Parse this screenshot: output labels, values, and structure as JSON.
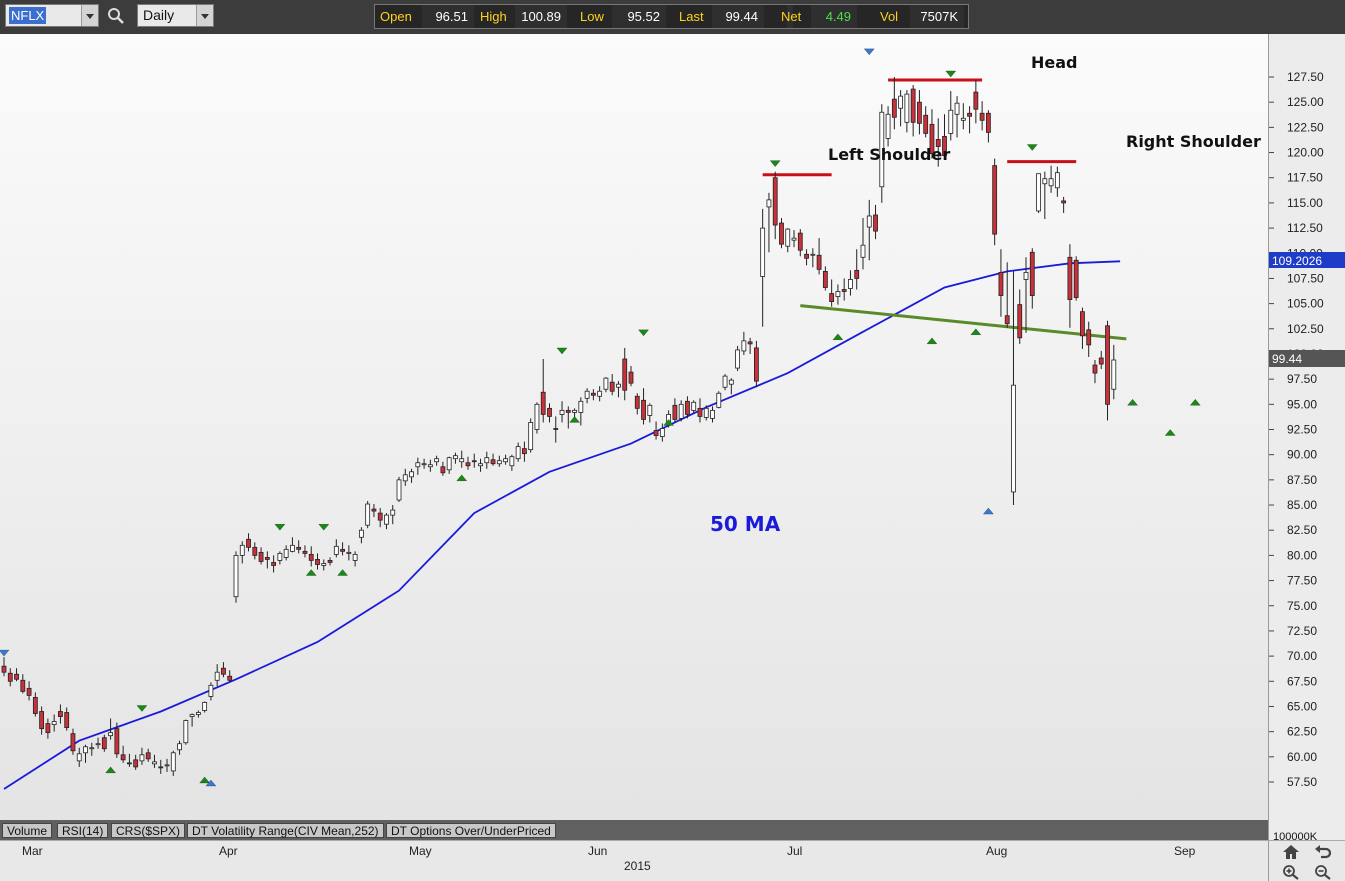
{
  "toolbar": {
    "symbol": "NFLX",
    "period": "Daily",
    "icons": {
      "symbol_dropdown": "chevron-down-icon",
      "search": "search-icon",
      "period_dropdown": "chevron-down-icon"
    },
    "quote": {
      "open_label": "Open",
      "open_value": "96.51",
      "high_label": "High",
      "high_value": "100.89",
      "low_label": "Low",
      "low_value": "95.52",
      "last_label": "Last",
      "last_value": "99.44",
      "net_label": "Net",
      "net_value": "4.49",
      "vol_label": "Vol",
      "vol_value": "7507K"
    }
  },
  "colors": {
    "up_candle": "#ffffff",
    "down_candle": "#c8303a",
    "ma_line": "#1a1adb",
    "neckline": "#5a8a2a",
    "resistance": "#c8101a",
    "peak_marker": "#158a15",
    "extreme_marker": "#3a78d6",
    "last_price_box": "#555555",
    "ma_price_box": "#1e3cc8"
  },
  "chart_data": {
    "type": "candlestick",
    "symbol": "NFLX",
    "interval": "Daily",
    "year": "2015",
    "ylim": [
      55.0,
      131.0
    ],
    "y_ticks": [
      "127.50",
      "125.00",
      "122.50",
      "120.00",
      "117.50",
      "115.00",
      "112.50",
      "110.00",
      "107.50",
      "105.00",
      "102.50",
      "100.00",
      "97.50",
      "95.00",
      "92.50",
      "90.00",
      "87.50",
      "85.00",
      "82.50",
      "80.00",
      "77.50",
      "75.00",
      "72.50",
      "70.00",
      "67.50",
      "65.00",
      "62.50",
      "60.00",
      "57.50"
    ],
    "x_month_labels": [
      "Mar",
      "Apr",
      "May",
      "Jun",
      "Jul",
      "Aug",
      "Sep"
    ],
    "ohlc": [
      [
        69.0,
        69.9,
        68.0,
        68.4
      ],
      [
        68.3,
        68.8,
        67.0,
        67.5
      ],
      [
        68.2,
        68.8,
        67.5,
        67.7
      ],
      [
        67.6,
        68.2,
        66.3,
        66.5
      ],
      [
        66.8,
        67.5,
        65.6,
        66.1
      ],
      [
        65.9,
        66.4,
        64.0,
        64.3
      ],
      [
        64.5,
        65.0,
        62.2,
        62.8
      ],
      [
        63.3,
        63.8,
        61.8,
        62.4
      ],
      [
        63.2,
        64.2,
        62.5,
        63.5
      ],
      [
        64.5,
        65.2,
        63.3,
        64.0
      ],
      [
        64.4,
        64.9,
        62.6,
        62.9
      ],
      [
        62.3,
        62.8,
        60.2,
        60.6
      ],
      [
        59.6,
        60.9,
        59.0,
        60.3
      ],
      [
        60.4,
        61.2,
        59.4,
        61.0
      ],
      [
        60.8,
        61.4,
        60.1,
        60.9
      ],
      [
        61.2,
        61.9,
        60.8,
        61.3
      ],
      [
        61.9,
        62.2,
        60.5,
        60.8
      ],
      [
        62.1,
        63.8,
        61.7,
        62.4
      ],
      [
        62.8,
        63.4,
        59.9,
        60.3
      ],
      [
        60.2,
        61.1,
        59.4,
        59.7
      ],
      [
        59.4,
        60.3,
        59.0,
        59.3
      ],
      [
        59.7,
        60.2,
        58.7,
        59.0
      ],
      [
        59.6,
        60.9,
        59.2,
        60.2
      ],
      [
        60.4,
        60.8,
        59.5,
        59.8
      ],
      [
        59.3,
        60.2,
        58.9,
        59.5
      ],
      [
        59.0,
        59.7,
        58.3,
        58.9
      ],
      [
        59.2,
        59.8,
        58.5,
        59.2
      ],
      [
        58.6,
        60.6,
        58.1,
        60.4
      ],
      [
        60.7,
        61.6,
        60.2,
        61.3
      ],
      [
        61.4,
        63.7,
        61.2,
        63.6
      ],
      [
        64.0,
        64.3,
        63.0,
        64.2
      ],
      [
        64.2,
        64.6,
        63.9,
        64.4
      ],
      [
        64.6,
        65.5,
        64.4,
        65.4
      ],
      [
        66.0,
        67.4,
        65.6,
        67.1
      ],
      [
        67.6,
        69.2,
        67.0,
        68.4
      ],
      [
        68.8,
        69.4,
        67.9,
        68.2
      ],
      [
        68.0,
        68.6,
        67.4,
        67.6
      ],
      [
        75.9,
        80.4,
        75.3,
        80.0
      ],
      [
        80.0,
        81.4,
        79.2,
        81.0
      ],
      [
        81.6,
        82.2,
        80.4,
        80.8
      ],
      [
        80.8,
        81.3,
        79.6,
        80.0
      ],
      [
        80.3,
        80.8,
        79.1,
        79.4
      ],
      [
        79.8,
        80.4,
        78.7,
        79.6
      ],
      [
        79.3,
        80.0,
        78.3,
        79.0
      ],
      [
        79.5,
        80.4,
        79.1,
        80.2
      ],
      [
        79.8,
        81.0,
        79.5,
        80.6
      ],
      [
        80.4,
        81.8,
        80.3,
        81.0
      ],
      [
        80.8,
        81.5,
        80.2,
        80.6
      ],
      [
        80.4,
        81.0,
        79.8,
        80.2
      ],
      [
        80.1,
        80.9,
        78.9,
        79.5
      ],
      [
        79.6,
        80.2,
        78.6,
        79.1
      ],
      [
        79.0,
        79.6,
        78.5,
        79.2
      ],
      [
        79.5,
        79.8,
        79.0,
        79.3
      ],
      [
        80.1,
        81.6,
        79.8,
        80.9
      ],
      [
        80.6,
        81.3,
        80.0,
        80.4
      ],
      [
        80.2,
        81.0,
        79.5,
        80.3
      ],
      [
        79.5,
        80.4,
        78.9,
        80.1
      ],
      [
        81.8,
        82.8,
        81.2,
        82.5
      ],
      [
        83.0,
        85.4,
        82.7,
        85.1
      ],
      [
        84.6,
        85.1,
        83.8,
        84.4
      ],
      [
        84.2,
        84.7,
        82.8,
        83.5
      ],
      [
        83.1,
        84.2,
        82.6,
        84.0
      ],
      [
        84.0,
        85.0,
        83.1,
        84.5
      ],
      [
        85.5,
        87.8,
        85.3,
        87.5
      ],
      [
        87.4,
        88.6,
        86.9,
        88.0
      ],
      [
        87.8,
        88.6,
        87.2,
        88.3
      ],
      [
        88.8,
        89.7,
        88.0,
        89.2
      ],
      [
        89.0,
        89.6,
        88.6,
        89.1
      ],
      [
        88.8,
        89.5,
        88.3,
        89.0
      ],
      [
        89.3,
        89.9,
        88.9,
        89.6
      ],
      [
        88.8,
        89.3,
        87.9,
        88.2
      ],
      [
        88.5,
        89.8,
        88.1,
        89.7
      ],
      [
        89.6,
        90.2,
        89.1,
        89.9
      ],
      [
        89.3,
        90.4,
        88.7,
        89.6
      ],
      [
        89.2,
        89.8,
        88.5,
        88.9
      ],
      [
        89.4,
        90.1,
        88.7,
        89.3
      ],
      [
        88.9,
        89.6,
        88.3,
        89.1
      ],
      [
        89.2,
        90.3,
        88.6,
        89.7
      ],
      [
        89.5,
        90.1,
        88.9,
        89.1
      ],
      [
        89.1,
        89.9,
        88.8,
        89.4
      ],
      [
        89.3,
        90.0,
        89.0,
        89.6
      ],
      [
        88.9,
        90.0,
        88.4,
        89.8
      ],
      [
        89.6,
        91.2,
        89.3,
        90.8
      ],
      [
        90.6,
        91.3,
        89.3,
        90.1
      ],
      [
        90.5,
        93.6,
        90.2,
        93.2
      ],
      [
        92.5,
        95.2,
        92.1,
        95.0
      ],
      [
        96.2,
        99.5,
        93.2,
        94.0
      ],
      [
        94.6,
        95.1,
        93.2,
        93.8
      ],
      [
        92.6,
        93.8,
        91.2,
        92.5
      ],
      [
        94.0,
        95.3,
        93.2,
        94.4
      ],
      [
        94.4,
        94.8,
        92.6,
        94.2
      ],
      [
        94.2,
        94.6,
        93.4,
        94.4
      ],
      [
        94.2,
        95.7,
        92.9,
        95.3
      ],
      [
        95.6,
        96.6,
        95.1,
        96.3
      ],
      [
        96.1,
        96.5,
        95.4,
        95.9
      ],
      [
        95.8,
        96.8,
        95.3,
        96.3
      ],
      [
        96.5,
        97.7,
        96.2,
        97.6
      ],
      [
        97.2,
        98.0,
        95.9,
        96.3
      ],
      [
        96.7,
        97.3,
        95.7,
        97.0
      ],
      [
        99.5,
        100.6,
        95.4,
        96.4
      ],
      [
        98.2,
        98.8,
        96.8,
        97.1
      ],
      [
        95.8,
        96.1,
        94.0,
        94.6
      ],
      [
        95.4,
        96.6,
        93.0,
        93.5
      ],
      [
        93.9,
        95.1,
        93.2,
        94.9
      ],
      [
        92.4,
        93.3,
        91.5,
        91.9
      ],
      [
        91.8,
        93.1,
        91.3,
        92.6
      ],
      [
        93.1,
        94.4,
        92.7,
        94.0
      ],
      [
        94.9,
        95.6,
        93.2,
        93.5
      ],
      [
        93.6,
        95.4,
        93.3,
        95.0
      ],
      [
        95.3,
        95.8,
        93.6,
        94.0
      ],
      [
        94.4,
        95.4,
        94.1,
        95.2
      ],
      [
        94.6,
        95.6,
        93.2,
        93.8
      ],
      [
        93.7,
        94.9,
        93.4,
        94.6
      ],
      [
        93.6,
        94.8,
        93.2,
        94.4
      ],
      [
        94.7,
        96.3,
        94.6,
        96.1
      ],
      [
        96.7,
        98.0,
        96.4,
        97.8
      ],
      [
        97.0,
        97.6,
        96.0,
        97.4
      ],
      [
        98.6,
        100.8,
        98.3,
        100.4
      ],
      [
        100.3,
        102.2,
        99.9,
        101.3
      ],
      [
        101.2,
        101.6,
        100.0,
        101.0
      ],
      [
        100.6,
        101.3,
        96.7,
        97.3
      ],
      [
        107.7,
        114.4,
        102.7,
        112.5
      ],
      [
        114.6,
        116.0,
        110.1,
        115.3
      ],
      [
        117.5,
        118.1,
        111.4,
        112.8
      ],
      [
        113.0,
        113.5,
        110.5,
        110.9
      ],
      [
        110.7,
        112.5,
        110.1,
        112.4
      ],
      [
        111.3,
        112.3,
        110.6,
        111.5
      ],
      [
        112.0,
        112.4,
        109.7,
        110.3
      ],
      [
        109.9,
        110.4,
        108.8,
        109.5
      ],
      [
        109.8,
        110.5,
        108.6,
        109.9
      ],
      [
        109.8,
        111.5,
        107.9,
        108.4
      ],
      [
        108.2,
        108.7,
        106.3,
        106.6
      ],
      [
        106.0,
        107.4,
        104.7,
        105.2
      ],
      [
        105.7,
        106.9,
        104.9,
        106.2
      ],
      [
        106.4,
        107.5,
        105.3,
        106.2
      ],
      [
        106.5,
        108.3,
        105.8,
        107.4
      ],
      [
        108.3,
        110.4,
        106.4,
        107.5
      ],
      [
        109.6,
        113.5,
        108.4,
        110.8
      ],
      [
        112.6,
        115.3,
        109.3,
        113.7
      ],
      [
        113.8,
        114.8,
        111.4,
        112.2
      ],
      [
        116.6,
        124.8,
        115.0,
        124.0
      ],
      [
        121.4,
        124.6,
        120.6,
        123.8
      ],
      [
        125.3,
        127.5,
        122.3,
        123.5
      ],
      [
        124.4,
        126.2,
        122.6,
        125.6
      ],
      [
        123.0,
        126.2,
        122.0,
        125.8
      ],
      [
        126.3,
        126.7,
        121.6,
        123.0
      ],
      [
        125.0,
        126.2,
        121.8,
        122.9
      ],
      [
        123.7,
        124.6,
        121.5,
        121.9
      ],
      [
        122.8,
        124.3,
        119.4,
        119.9
      ],
      [
        121.3,
        123.4,
        118.6,
        120.6
      ],
      [
        121.6,
        123.8,
        119.4,
        119.7
      ],
      [
        121.9,
        126.1,
        121.2,
        124.2
      ],
      [
        123.8,
        125.6,
        121.5,
        124.9
      ],
      [
        123.2,
        124.9,
        122.3,
        123.4
      ],
      [
        123.9,
        124.6,
        121.9,
        123.6
      ],
      [
        126.0,
        127.2,
        122.9,
        124.3
      ],
      [
        123.9,
        125.1,
        122.2,
        123.2
      ],
      [
        123.9,
        124.2,
        121.0,
        122.0
      ],
      [
        118.7,
        119.4,
        110.8,
        111.9
      ],
      [
        108.1,
        110.4,
        103.7,
        105.8
      ],
      [
        103.8,
        109.1,
        102.6,
        103.0
      ],
      [
        86.3,
        108.2,
        85.0,
        96.9
      ],
      [
        104.9,
        106.4,
        101.0,
        101.6
      ],
      [
        107.4,
        109.6,
        102.1,
        108.1
      ],
      [
        110.1,
        110.5,
        104.5,
        105.8
      ],
      [
        114.2,
        117.9,
        114.0,
        117.9
      ],
      [
        116.9,
        118.1,
        113.4,
        117.4
      ],
      [
        116.7,
        118.7,
        116.0,
        117.4
      ],
      [
        116.5,
        118.6,
        115.6,
        118.0
      ],
      [
        115.2,
        115.6,
        114.0,
        115.0
      ],
      [
        109.6,
        110.9,
        102.6,
        105.4
      ],
      [
        109.3,
        109.7,
        105.3,
        105.6
      ],
      [
        104.2,
        104.6,
        100.5,
        101.8
      ],
      [
        102.4,
        103.2,
        99.7,
        100.9
      ],
      [
        98.9,
        99.4,
        97.1,
        98.1
      ],
      [
        99.6,
        100.3,
        98.5,
        99.0
      ],
      [
        102.8,
        103.3,
        93.4,
        95.0
      ],
      [
        96.5,
        100.9,
        95.5,
        99.4
      ]
    ],
    "ma50": {
      "name": "50 MA",
      "days": [
        0,
        12,
        25,
        37,
        50,
        63,
        75,
        87,
        100,
        112,
        125,
        137,
        150,
        160,
        170,
        178
      ],
      "values": [
        56.8,
        61.6,
        64.5,
        67.7,
        71.4,
        76.5,
        84.2,
        88.3,
        91.1,
        94.7,
        98.1,
        102.2,
        106.6,
        108.2,
        109.0,
        109.2
      ]
    },
    "neckline": {
      "from": [
        127,
        104.8
      ],
      "to": [
        179,
        101.5
      ]
    },
    "resistance_lines": [
      {
        "from_day": 121,
        "to_day": 132,
        "value": 117.8
      },
      {
        "from_day": 141,
        "to_day": 156,
        "value": 127.2
      },
      {
        "from_day": 160,
        "to_day": 171,
        "value": 119.1
      }
    ],
    "up_markers": [
      {
        "day": 17,
        "value": 59.0
      },
      {
        "day": 32,
        "value": 58.0
      },
      {
        "day": 49,
        "value": 78.6
      },
      {
        "day": 54,
        "value": 78.6
      },
      {
        "day": 73,
        "value": 88.0
      },
      {
        "day": 91,
        "value": 93.8
      },
      {
        "day": 106,
        "value": 93.5
      },
      {
        "day": 133,
        "value": 102.0
      },
      {
        "day": 148,
        "value": 101.6
      },
      {
        "day": 155,
        "value": 102.5
      },
      {
        "day": 180,
        "value": 95.5
      },
      {
        "day": 186,
        "value": 92.5
      },
      {
        "day": 190,
        "value": 95.5
      }
    ],
    "down_markers": [
      {
        "day": 22,
        "value": 64.5
      },
      {
        "day": 44,
        "value": 82.5
      },
      {
        "day": 51,
        "value": 82.5
      },
      {
        "day": 89,
        "value": 100.0
      },
      {
        "day": 102,
        "value": 101.8
      },
      {
        "day": 123,
        "value": 118.6
      },
      {
        "day": 151,
        "value": 127.5
      },
      {
        "day": 164,
        "value": 120.2
      }
    ],
    "extreme_markers": [
      {
        "day": 0,
        "value": 70.0,
        "dir": "down"
      },
      {
        "day": 33,
        "value": 57.7,
        "dir": "up"
      },
      {
        "day": 138,
        "value": 129.7,
        "dir": "down"
      },
      {
        "day": 157,
        "value": 84.7,
        "dir": "up"
      }
    ],
    "annotations": {
      "left_shoulder": "Left Shoulder",
      "head": "Head",
      "right_shoulder": "Right Shoulder",
      "ma_label": "50 MA"
    },
    "last_price_tag": "99.44",
    "ma_price_tag": "109.2026"
  },
  "indicator_tabs": [
    "Volume",
    "RSI(14)",
    "CRS($SPX)",
    "DT Volatility Range(CIV Mean,252)",
    "DT Options Over/UnderPriced"
  ],
  "volume_axis_label": "100000K",
  "nav_icons": [
    "home-icon",
    "undo-icon",
    "zoom-in-icon",
    "zoom-out-icon"
  ]
}
